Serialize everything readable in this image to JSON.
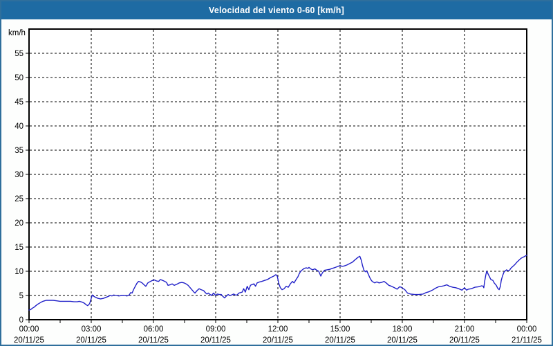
{
  "window": {
    "title": "Velocidad del viento 0-60 [km/h]"
  },
  "colors": {
    "title_bar": "#1e6ba3",
    "title_text": "#ffffff",
    "window_border": "#2f6f9c",
    "page_bg": "#fdfefd",
    "plot_bg": "#ffffff",
    "frame": "#000000",
    "grid": "#000000",
    "axis_text": "#000000",
    "line": "#2020c8"
  },
  "chart_data": {
    "type": "line",
    "title": "Velocidad del viento 0-60 [km/h]",
    "xlabel": "",
    "ylabel": "km/h",
    "ylim": [
      0,
      60
    ],
    "yticks": [
      0,
      5,
      10,
      15,
      20,
      25,
      30,
      35,
      40,
      45,
      50,
      55
    ],
    "x_hours_span": 24,
    "minor_xtick_step_hours": 1.5,
    "grid": {
      "style": "dashed",
      "y_step": 5,
      "x_step_hours": 3
    },
    "legend": "none",
    "xticks": [
      {
        "hour": 0,
        "time": "00:00",
        "date": "20/11/25"
      },
      {
        "hour": 3,
        "time": "03:00",
        "date": "20/11/25"
      },
      {
        "hour": 6,
        "time": "06:00",
        "date": "20/11/25"
      },
      {
        "hour": 9,
        "time": "09:00",
        "date": "20/11/25"
      },
      {
        "hour": 12,
        "time": "12:00",
        "date": "20/11/25"
      },
      {
        "hour": 15,
        "time": "15:00",
        "date": "20/11/25"
      },
      {
        "hour": 18,
        "time": "18:00",
        "date": "20/11/25"
      },
      {
        "hour": 21,
        "time": "21:00",
        "date": "20/11/25"
      },
      {
        "hour": 24,
        "time": "00:00",
        "date": "21/11/25"
      }
    ],
    "series": [
      {
        "name": "Velocidad del viento [km/h]",
        "color": "#2020c8",
        "points": [
          [
            0.0,
            2.0
          ],
          [
            0.08,
            2.1
          ],
          [
            0.17,
            2.4
          ],
          [
            0.25,
            2.6
          ],
          [
            0.33,
            2.9
          ],
          [
            0.42,
            3.2
          ],
          [
            0.5,
            3.4
          ],
          [
            0.58,
            3.6
          ],
          [
            0.67,
            3.8
          ],
          [
            0.75,
            3.9
          ],
          [
            0.83,
            4.0
          ],
          [
            1.0,
            4.0
          ],
          [
            1.17,
            4.0
          ],
          [
            1.33,
            3.9
          ],
          [
            1.5,
            3.8
          ],
          [
            1.67,
            3.8
          ],
          [
            1.83,
            3.8
          ],
          [
            2.0,
            3.8
          ],
          [
            2.17,
            3.7
          ],
          [
            2.33,
            3.7
          ],
          [
            2.42,
            3.8
          ],
          [
            2.5,
            3.7
          ],
          [
            2.58,
            3.6
          ],
          [
            2.67,
            3.4
          ],
          [
            2.75,
            3.1
          ],
          [
            2.83,
            2.9
          ],
          [
            2.92,
            3.3
          ],
          [
            3.0,
            4.4
          ],
          [
            3.05,
            5.1
          ],
          [
            3.13,
            4.8
          ],
          [
            3.22,
            4.6
          ],
          [
            3.33,
            4.4
          ],
          [
            3.45,
            4.3
          ],
          [
            3.58,
            4.4
          ],
          [
            3.7,
            4.6
          ],
          [
            3.82,
            4.8
          ],
          [
            3.92,
            5.0
          ],
          [
            4.0,
            4.9
          ],
          [
            4.08,
            5.1
          ],
          [
            4.2,
            5.0
          ],
          [
            4.33,
            4.9
          ],
          [
            4.47,
            5.0
          ],
          [
            4.6,
            5.0
          ],
          [
            4.72,
            4.9
          ],
          [
            4.83,
            5.1
          ],
          [
            4.9,
            5.6
          ],
          [
            4.97,
            5.5
          ],
          [
            5.05,
            6.3
          ],
          [
            5.1,
            6.7
          ],
          [
            5.2,
            7.5
          ],
          [
            5.28,
            7.9
          ],
          [
            5.37,
            7.8
          ],
          [
            5.45,
            7.6
          ],
          [
            5.55,
            7.2
          ],
          [
            5.63,
            6.9
          ],
          [
            5.73,
            7.6
          ],
          [
            5.85,
            7.9
          ],
          [
            5.95,
            8.1
          ],
          [
            6.05,
            8.2
          ],
          [
            6.15,
            8.0
          ],
          [
            6.25,
            7.9
          ],
          [
            6.33,
            8.3
          ],
          [
            6.45,
            8.1
          ],
          [
            6.55,
            7.9
          ],
          [
            6.63,
            7.7
          ],
          [
            6.7,
            7.1
          ],
          [
            6.8,
            7.2
          ],
          [
            6.9,
            7.4
          ],
          [
            7.0,
            7.1
          ],
          [
            7.12,
            7.3
          ],
          [
            7.25,
            7.6
          ],
          [
            7.37,
            7.7
          ],
          [
            7.47,
            7.6
          ],
          [
            7.57,
            7.4
          ],
          [
            7.67,
            7.1
          ],
          [
            7.75,
            6.7
          ],
          [
            7.85,
            6.2
          ],
          [
            7.95,
            5.7
          ],
          [
            8.0,
            5.5
          ],
          [
            8.1,
            6.0
          ],
          [
            8.2,
            6.4
          ],
          [
            8.3,
            6.2
          ],
          [
            8.42,
            6.0
          ],
          [
            8.52,
            5.5
          ],
          [
            8.58,
            5.3
          ],
          [
            8.65,
            5.5
          ],
          [
            8.73,
            5.2
          ],
          [
            8.8,
            5.0
          ],
          [
            8.9,
            5.5
          ],
          [
            9.0,
            5.0
          ],
          [
            9.08,
            5.3
          ],
          [
            9.18,
            5.2
          ],
          [
            9.27,
            5.2
          ],
          [
            9.35,
            4.8
          ],
          [
            9.43,
            4.5
          ],
          [
            9.52,
            4.9
          ],
          [
            9.6,
            5.2
          ],
          [
            9.68,
            5.0
          ],
          [
            9.77,
            5.1
          ],
          [
            9.87,
            5.3
          ],
          [
            9.95,
            5.1
          ],
          [
            10.03,
            5.1
          ],
          [
            10.12,
            5.5
          ],
          [
            10.2,
            5.6
          ],
          [
            10.28,
            5.7
          ],
          [
            10.35,
            6.4
          ],
          [
            10.43,
            5.7
          ],
          [
            10.52,
            6.9
          ],
          [
            10.6,
            6.2
          ],
          [
            10.68,
            7.1
          ],
          [
            10.77,
            7.3
          ],
          [
            10.85,
            7.4
          ],
          [
            10.92,
            6.9
          ],
          [
            11.0,
            7.6
          ],
          [
            11.12,
            7.8
          ],
          [
            11.22,
            7.9
          ],
          [
            11.35,
            8.1
          ],
          [
            11.5,
            8.3
          ],
          [
            11.65,
            8.7
          ],
          [
            11.8,
            9.0
          ],
          [
            11.9,
            9.3
          ],
          [
            11.97,
            9.0
          ],
          [
            12.05,
            7.4
          ],
          [
            12.12,
            6.6
          ],
          [
            12.2,
            6.2
          ],
          [
            12.3,
            6.4
          ],
          [
            12.4,
            6.9
          ],
          [
            12.5,
            6.7
          ],
          [
            12.6,
            7.4
          ],
          [
            12.7,
            7.9
          ],
          [
            12.78,
            7.6
          ],
          [
            12.88,
            8.3
          ],
          [
            12.97,
            8.9
          ],
          [
            13.03,
            9.5
          ],
          [
            13.1,
            10.0
          ],
          [
            13.18,
            10.3
          ],
          [
            13.27,
            10.6
          ],
          [
            13.37,
            10.7
          ],
          [
            13.45,
            10.6
          ],
          [
            13.5,
            10.8
          ],
          [
            13.58,
            10.5
          ],
          [
            13.68,
            10.3
          ],
          [
            13.78,
            10.5
          ],
          [
            13.88,
            10.2
          ],
          [
            13.97,
            10.0
          ],
          [
            14.07,
            9.0
          ],
          [
            14.15,
            9.7
          ],
          [
            14.25,
            10.2
          ],
          [
            14.37,
            10.3
          ],
          [
            14.5,
            10.4
          ],
          [
            14.63,
            10.6
          ],
          [
            14.77,
            10.8
          ],
          [
            14.9,
            11.0
          ],
          [
            15.0,
            11.2
          ],
          [
            15.1,
            11.0
          ],
          [
            15.2,
            11.1
          ],
          [
            15.33,
            11.3
          ],
          [
            15.47,
            11.6
          ],
          [
            15.6,
            11.9
          ],
          [
            15.73,
            12.4
          ],
          [
            15.87,
            12.9
          ],
          [
            15.95,
            13.1
          ],
          [
            16.02,
            12.3
          ],
          [
            16.08,
            11.2
          ],
          [
            16.15,
            10.2
          ],
          [
            16.22,
            9.9
          ],
          [
            16.28,
            10.1
          ],
          [
            16.35,
            9.5
          ],
          [
            16.42,
            8.8
          ],
          [
            16.48,
            8.3
          ],
          [
            16.55,
            7.9
          ],
          [
            16.67,
            7.6
          ],
          [
            16.77,
            7.8
          ],
          [
            16.88,
            7.6
          ],
          [
            17.0,
            7.7
          ],
          [
            17.12,
            7.9
          ],
          [
            17.22,
            7.6
          ],
          [
            17.35,
            7.1
          ],
          [
            17.48,
            6.9
          ],
          [
            17.62,
            6.6
          ],
          [
            17.75,
            6.3
          ],
          [
            17.87,
            6.8
          ],
          [
            17.95,
            6.7
          ],
          [
            18.05,
            6.4
          ],
          [
            18.12,
            6.2
          ],
          [
            18.25,
            5.5
          ],
          [
            18.4,
            5.3
          ],
          [
            18.6,
            5.2
          ],
          [
            18.8,
            5.2
          ],
          [
            19.0,
            5.3
          ],
          [
            19.15,
            5.6
          ],
          [
            19.3,
            5.8
          ],
          [
            19.45,
            6.1
          ],
          [
            19.6,
            6.5
          ],
          [
            19.75,
            6.8
          ],
          [
            19.9,
            6.9
          ],
          [
            20.0,
            7.0
          ],
          [
            20.15,
            7.2
          ],
          [
            20.28,
            6.9
          ],
          [
            20.43,
            6.7
          ],
          [
            20.58,
            6.6
          ],
          [
            20.72,
            6.4
          ],
          [
            20.88,
            6.1
          ],
          [
            21.0,
            6.6
          ],
          [
            21.1,
            6.1
          ],
          [
            21.18,
            6.3
          ],
          [
            21.33,
            6.4
          ],
          [
            21.5,
            6.7
          ],
          [
            21.67,
            6.8
          ],
          [
            21.83,
            7.0
          ],
          [
            21.9,
            6.9
          ],
          [
            21.93,
            6.6
          ],
          [
            21.97,
            7.9
          ],
          [
            22.03,
            9.3
          ],
          [
            22.07,
            10.0
          ],
          [
            22.13,
            9.5
          ],
          [
            22.2,
            8.9
          ],
          [
            22.27,
            8.3
          ],
          [
            22.37,
            8.1
          ],
          [
            22.43,
            7.6
          ],
          [
            22.53,
            7.1
          ],
          [
            22.6,
            6.5
          ],
          [
            22.67,
            6.2
          ],
          [
            22.73,
            6.9
          ],
          [
            22.77,
            8.1
          ],
          [
            22.83,
            9.0
          ],
          [
            22.9,
            9.8
          ],
          [
            22.97,
            10.1
          ],
          [
            23.03,
            10.3
          ],
          [
            23.1,
            10.1
          ],
          [
            23.17,
            10.2
          ],
          [
            23.23,
            10.6
          ],
          [
            23.33,
            11.0
          ],
          [
            23.43,
            11.4
          ],
          [
            23.53,
            11.9
          ],
          [
            23.63,
            12.3
          ],
          [
            23.73,
            12.7
          ],
          [
            23.87,
            13.0
          ],
          [
            24.0,
            13.3
          ]
        ]
      }
    ]
  }
}
